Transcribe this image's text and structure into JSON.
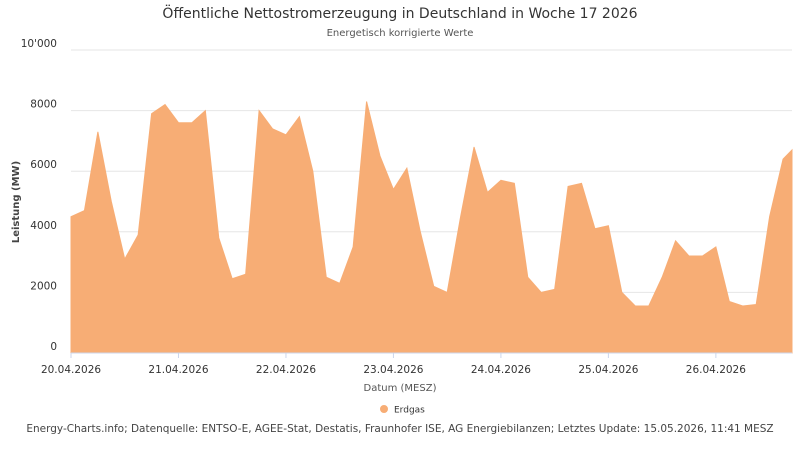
{
  "chart_data": {
    "type": "area",
    "title": "Öffentliche Nettostromerzeugung in Deutschland in Woche 17 2026",
    "subtitle": "Energetisch korrigierte Werte",
    "x_label": "Datum (MESZ)",
    "y_label": "Leistung (MW)",
    "source": "Energy-Charts.info; Datenquelle: ENTSO-E, AGEE-Stat, Destatis, Fraunhofer ISE, AG Energiebilanzen; Letztes Update: 15.05.2026, 11:41 MESZ",
    "x": [
      "2026-04-20T00:00",
      "2026-04-20T03:00",
      "2026-04-20T06:00",
      "2026-04-20T09:00",
      "2026-04-20T12:00",
      "2026-04-20T15:00",
      "2026-04-20T18:00",
      "2026-04-20T21:00",
      "2026-04-21T00:00",
      "2026-04-21T03:00",
      "2026-04-21T06:00",
      "2026-04-21T09:00",
      "2026-04-21T12:00",
      "2026-04-21T15:00",
      "2026-04-21T18:00",
      "2026-04-21T21:00",
      "2026-04-22T00:00",
      "2026-04-22T03:00",
      "2026-04-22T06:00",
      "2026-04-22T09:00",
      "2026-04-22T12:00",
      "2026-04-22T15:00",
      "2026-04-22T18:00",
      "2026-04-22T21:00",
      "2026-04-23T00:00",
      "2026-04-23T03:00",
      "2026-04-23T06:00",
      "2026-04-23T09:00",
      "2026-04-23T12:00",
      "2026-04-23T15:00",
      "2026-04-23T18:00",
      "2026-04-23T21:00",
      "2026-04-24T00:00",
      "2026-04-24T03:00",
      "2026-04-24T06:00",
      "2026-04-24T09:00",
      "2026-04-24T12:00",
      "2026-04-24T15:00",
      "2026-04-24T18:00",
      "2026-04-24T21:00",
      "2026-04-25T00:00",
      "2026-04-25T03:00",
      "2026-04-25T06:00",
      "2026-04-25T09:00",
      "2026-04-25T12:00",
      "2026-04-25T15:00",
      "2026-04-25T18:00",
      "2026-04-25T21:00",
      "2026-04-26T00:00",
      "2026-04-26T03:00",
      "2026-04-26T06:00",
      "2026-04-26T09:00",
      "2026-04-26T12:00",
      "2026-04-26T15:00",
      "2026-04-26T17:00"
    ],
    "series": [
      {
        "name": "Erdgas",
        "color": "#f7ad75",
        "values": [
          4500,
          4700,
          7300,
          5000,
          3100,
          3900,
          7900,
          8200,
          7600,
          7600,
          8000,
          3800,
          2450,
          2600,
          8000,
          7400,
          7200,
          7800,
          6000,
          2500,
          2300,
          3500,
          8300,
          6500,
          5400,
          6100,
          4000,
          2200,
          2000,
          4500,
          6800,
          5300,
          5700,
          5600,
          2500,
          2000,
          2100,
          5500,
          5600,
          4100,
          4200,
          2000,
          1550,
          1550,
          2500,
          3700,
          3200,
          3200,
          3500,
          1700,
          1550,
          1600,
          4500,
          6400,
          6700
        ]
      }
    ],
    "xlim": [
      "2026-04-20T00:00",
      "2026-04-26T17:00"
    ],
    "xticks": [
      {
        "value": "2026-04-20T00:00",
        "label": "20.04.2026"
      },
      {
        "value": "2026-04-21T00:00",
        "label": "21.04.2026"
      },
      {
        "value": "2026-04-22T00:00",
        "label": "22.04.2026"
      },
      {
        "value": "2026-04-23T00:00",
        "label": "23.04.2026"
      },
      {
        "value": "2026-04-24T00:00",
        "label": "24.04.2026"
      },
      {
        "value": "2026-04-25T00:00",
        "label": "25.04.2026"
      },
      {
        "value": "2026-04-26T00:00",
        "label": "26.04.2026"
      }
    ],
    "ylim": [
      0,
      10000
    ],
    "yticks": [
      0,
      2000,
      4000,
      6000,
      8000,
      {
        "value": 10000,
        "label": "10'000"
      }
    ],
    "grid": true,
    "legend": "bottom"
  }
}
